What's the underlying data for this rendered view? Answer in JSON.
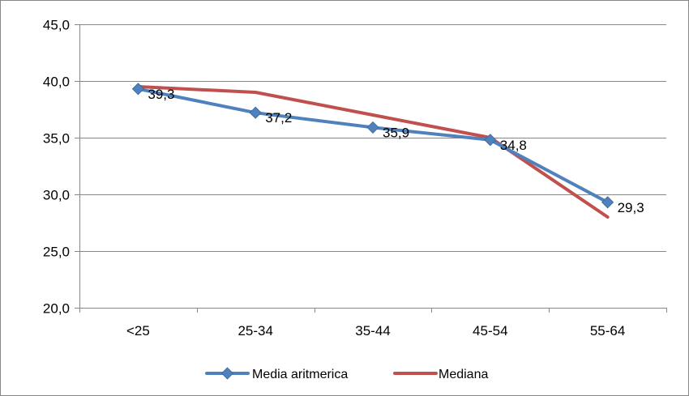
{
  "chart_data": {
    "type": "line",
    "title": "",
    "xlabel": "",
    "ylabel": "",
    "categories": [
      "<25",
      "25-34",
      "35-44",
      "45-54",
      "55-64"
    ],
    "ylim": [
      20,
      45
    ],
    "yticks": [
      20,
      25,
      30,
      35,
      40,
      45
    ],
    "ytick_labels": [
      "20,0",
      "25,0",
      "30,0",
      "35,0",
      "40,0",
      "45,0"
    ],
    "grid": true,
    "legend_position": "bottom",
    "series": [
      {
        "name": "Media aritmerica",
        "values": [
          39.3,
          37.2,
          35.9,
          34.8,
          29.3
        ],
        "data_labels": [
          "39,3",
          "37,2",
          "35,9",
          "34,8",
          "29,3"
        ],
        "color": "#4f81bd",
        "marker": "diamond"
      },
      {
        "name": "Mediana",
        "values": [
          39.5,
          39.0,
          37.0,
          35.0,
          28.0
        ],
        "color": "#c0504d",
        "marker": "none"
      }
    ]
  }
}
